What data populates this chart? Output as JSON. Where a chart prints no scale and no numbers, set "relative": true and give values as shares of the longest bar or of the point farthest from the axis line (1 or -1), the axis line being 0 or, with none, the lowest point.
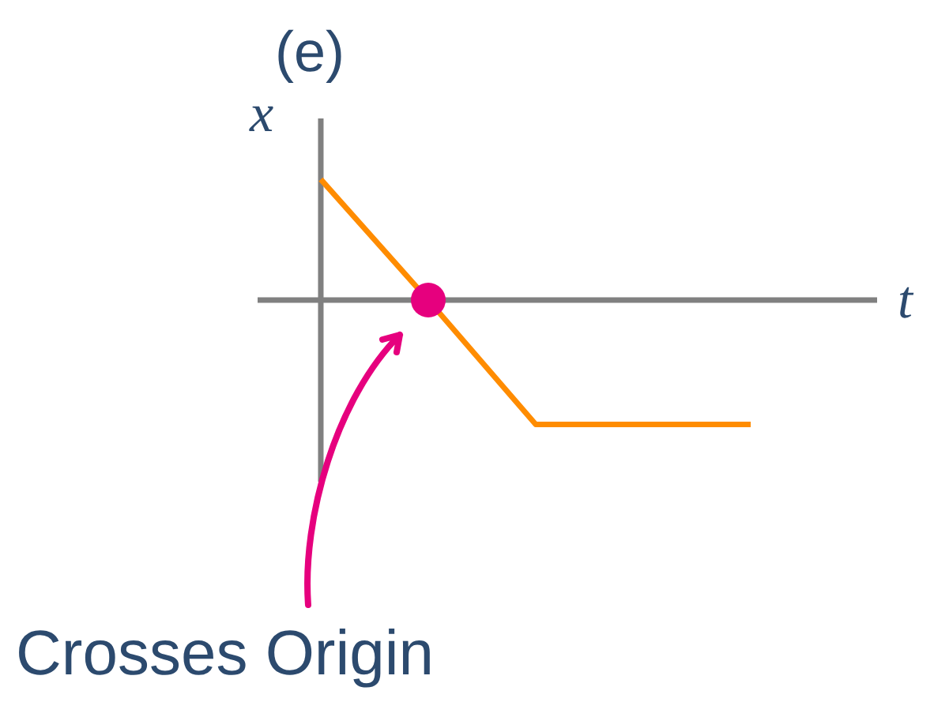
{
  "chart_data": {
    "type": "line",
    "relative": true,
    "title": "(e)",
    "xlabel": "t",
    "ylabel": "x",
    "categories": [
      null,
      null,
      null,
      null,
      null
    ],
    "series": [
      {
        "color": "#ff8c00",
        "values": [
          0.97,
          0,
          -1,
          -1,
          -1
        ]
      }
    ],
    "annotations": [
      "Crosses Origin"
    ]
  }
}
